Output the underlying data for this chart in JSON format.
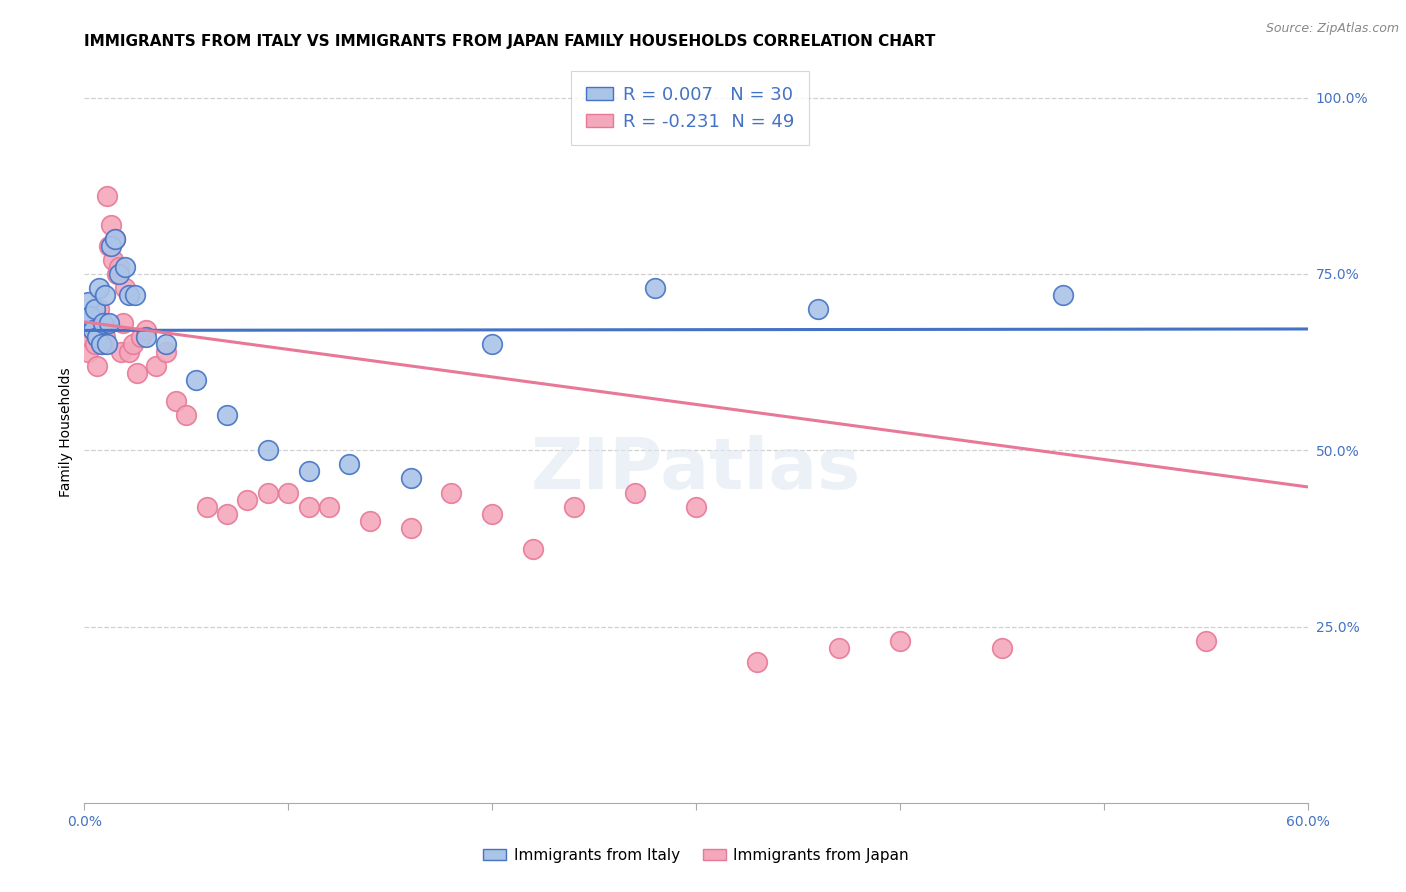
{
  "title": "IMMIGRANTS FROM ITALY VS IMMIGRANTS FROM JAPAN FAMILY HOUSEHOLDS CORRELATION CHART",
  "source": "Source: ZipAtlas.com",
  "xlabel_italy": "Immigrants from Italy",
  "xlabel_japan": "Immigrants from Japan",
  "ylabel": "Family Households",
  "xlim": [
    0.0,
    0.6
  ],
  "ylim": [
    0.0,
    1.05
  ],
  "legend_italy": "R = 0.007   N = 30",
  "legend_japan": "R = -0.231  N = 49",
  "color_italy": "#aac4e8",
  "color_japan": "#f4a8bc",
  "line_color_italy": "#4472c4",
  "line_color_japan": "#e87898",
  "background_color": "#ffffff",
  "grid_color": "#d0d0d0",
  "italy_trend_y0": 0.67,
  "italy_trend_y1": 0.672,
  "japan_trend_y0": 0.682,
  "japan_trend_y1": 0.448,
  "italy_x": [
    0.001,
    0.002,
    0.003,
    0.004,
    0.005,
    0.006,
    0.007,
    0.008,
    0.009,
    0.01,
    0.011,
    0.012,
    0.013,
    0.015,
    0.017,
    0.02,
    0.022,
    0.025,
    0.03,
    0.04,
    0.055,
    0.07,
    0.09,
    0.11,
    0.13,
    0.16,
    0.2,
    0.28,
    0.36,
    0.48
  ],
  "italy_y": [
    0.68,
    0.71,
    0.69,
    0.67,
    0.7,
    0.66,
    0.73,
    0.65,
    0.68,
    0.72,
    0.65,
    0.68,
    0.79,
    0.8,
    0.75,
    0.76,
    0.72,
    0.72,
    0.66,
    0.65,
    0.6,
    0.55,
    0.5,
    0.47,
    0.48,
    0.46,
    0.65,
    0.73,
    0.7,
    0.72
  ],
  "japan_x": [
    0.001,
    0.002,
    0.003,
    0.004,
    0.005,
    0.006,
    0.007,
    0.008,
    0.009,
    0.01,
    0.011,
    0.012,
    0.013,
    0.014,
    0.015,
    0.016,
    0.017,
    0.018,
    0.019,
    0.02,
    0.022,
    0.024,
    0.026,
    0.028,
    0.03,
    0.035,
    0.04,
    0.045,
    0.05,
    0.06,
    0.07,
    0.08,
    0.09,
    0.1,
    0.11,
    0.12,
    0.14,
    0.16,
    0.18,
    0.2,
    0.22,
    0.24,
    0.27,
    0.3,
    0.33,
    0.37,
    0.4,
    0.45,
    0.55
  ],
  "japan_y": [
    0.68,
    0.64,
    0.66,
    0.67,
    0.65,
    0.62,
    0.7,
    0.68,
    0.65,
    0.66,
    0.86,
    0.79,
    0.82,
    0.77,
    0.8,
    0.75,
    0.76,
    0.64,
    0.68,
    0.73,
    0.64,
    0.65,
    0.61,
    0.66,
    0.67,
    0.62,
    0.64,
    0.57,
    0.55,
    0.42,
    0.41,
    0.43,
    0.44,
    0.44,
    0.42,
    0.42,
    0.4,
    0.39,
    0.44,
    0.41,
    0.36,
    0.42,
    0.44,
    0.42,
    0.2,
    0.22,
    0.23,
    0.22,
    0.23
  ],
  "title_fontsize": 11,
  "axis_label_fontsize": 10,
  "tick_fontsize": 10,
  "legend_fontsize": 13
}
